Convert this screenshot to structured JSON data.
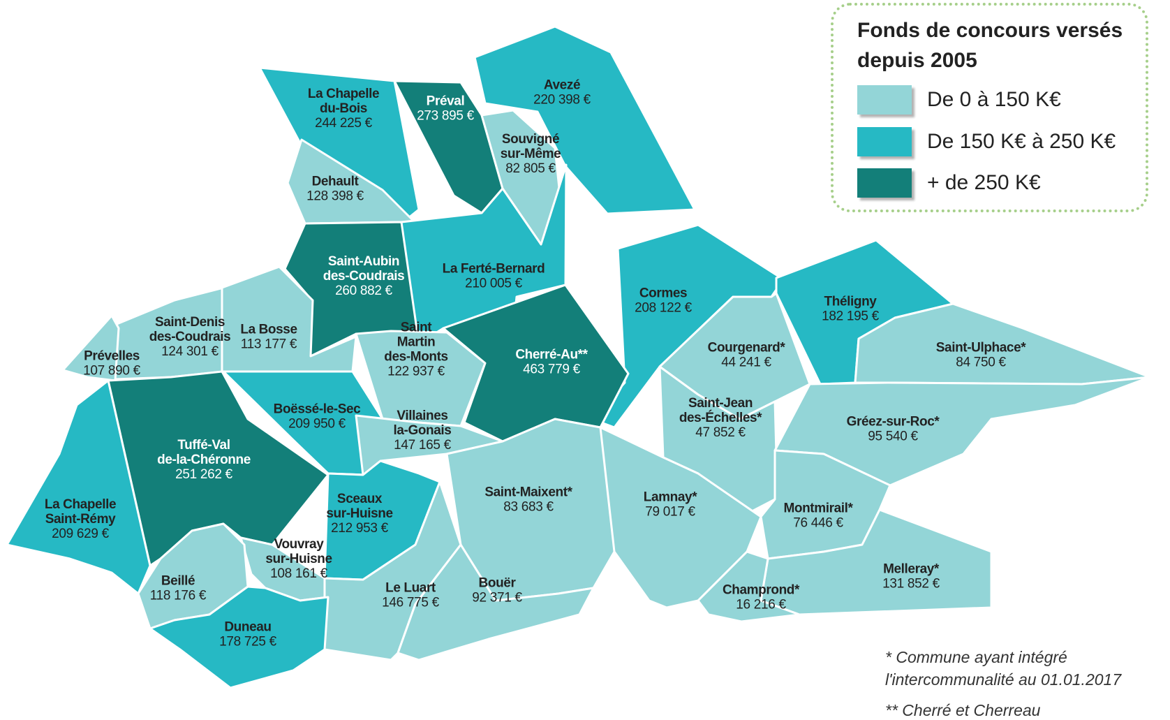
{
  "legend": {
    "title_line1": "Fonds de concours versés",
    "title_line2": "depuis 2005",
    "classes": [
      {
        "label": "De 0 à 150 K€",
        "color": "#93d5d7"
      },
      {
        "label": "De 150 K€ à 250 K€",
        "color": "#26b9c4"
      },
      {
        "label": "+ de 250 K€",
        "color": "#137f79"
      }
    ]
  },
  "notes": {
    "line1": "* Commune ayant intégré",
    "line2": "l'intercommunalité au 01.01.2017",
    "line3": "** Cherré et Cherreau"
  },
  "communes": [
    {
      "name": [
        "La Chapelle",
        "du-Bois"
      ],
      "value": "244 225 €",
      "class": 1
    },
    {
      "name": [
        "Préval"
      ],
      "value": "273 895 €",
      "class": 2
    },
    {
      "name": [
        "Avezé"
      ],
      "value": "220 398 €",
      "class": 1
    },
    {
      "name": [
        "Souvigné",
        "sur-Même"
      ],
      "value": "82 805 €",
      "class": 0
    },
    {
      "name": [
        "Dehault"
      ],
      "value": "128 398 €",
      "class": 0
    },
    {
      "name": [
        "Saint-Aubin",
        "des-Coudrais"
      ],
      "value": "260 882 €",
      "class": 2
    },
    {
      "name": [
        "La Ferté-Bernard"
      ],
      "value": "210 005 €",
      "class": 1
    },
    {
      "name": [
        "Cormes"
      ],
      "value": "208 122 €",
      "class": 1
    },
    {
      "name": [
        "Théligny"
      ],
      "value": "182 195 €",
      "class": 1
    },
    {
      "name": [
        "Saint-Denis",
        "des-Coudrais"
      ],
      "value": "124 301 €",
      "class": 0
    },
    {
      "name": [
        "La Bosse"
      ],
      "value": "113 177 €",
      "class": 0
    },
    {
      "name": [
        "Prévelles"
      ],
      "value": "107 890 €",
      "class": 0
    },
    {
      "name": [
        "Saint",
        "Martin",
        "des-Monts"
      ],
      "value": "122 937 €",
      "class": 0
    },
    {
      "name": [
        "Cherré-Au**"
      ],
      "value": "463 779 €",
      "class": 2
    },
    {
      "name": [
        "Courgenard*"
      ],
      "value": "44 241 €",
      "class": 0
    },
    {
      "name": [
        "Saint-Ulphace*"
      ],
      "value": "84 750 €",
      "class": 0
    },
    {
      "name": [
        "Boëssé-le-Sec"
      ],
      "value": "209 950 €",
      "class": 1
    },
    {
      "name": [
        "Villaines",
        "la-Gonais"
      ],
      "value": "147 165 €",
      "class": 0
    },
    {
      "name": [
        "Saint-Jean",
        "des-Échelles*"
      ],
      "value": "47 852 €",
      "class": 0
    },
    {
      "name": [
        "Gréez-sur-Roc*"
      ],
      "value": "95 540 €",
      "class": 0
    },
    {
      "name": [
        "Tuffé-Val",
        "de-la-Chéronne"
      ],
      "value": "251 262 €",
      "class": 2
    },
    {
      "name": [
        "La Chapelle",
        "Saint-Rémy"
      ],
      "value": "209 629 €",
      "class": 1
    },
    {
      "name": [
        "Sceaux",
        "sur-Huisne"
      ],
      "value": "212 953 €",
      "class": 1
    },
    {
      "name": [
        "Saint-Maixent*"
      ],
      "value": "83 683 €",
      "class": 0
    },
    {
      "name": [
        "Lamnay*"
      ],
      "value": "79 017 €",
      "class": 0
    },
    {
      "name": [
        "Montmirail*"
      ],
      "value": "76 446 €",
      "class": 0
    },
    {
      "name": [
        "Vouvray",
        "sur-Huisne"
      ],
      "value": "108 161 €",
      "class": 0
    },
    {
      "name": [
        "Beillé"
      ],
      "value": "118 176 €",
      "class": 0
    },
    {
      "name": [
        "Le Luart"
      ],
      "value": "146 775 €",
      "class": 0
    },
    {
      "name": [
        "Bouër"
      ],
      "value": "92 371 €",
      "class": 0
    },
    {
      "name": [
        "Melleray*"
      ],
      "value": "131 852 €",
      "class": 0
    },
    {
      "name": [
        "Champrond*"
      ],
      "value": "16 216 €",
      "class": 0
    },
    {
      "name": [
        "Duneau"
      ],
      "value": "178 725 €",
      "class": 1
    }
  ]
}
